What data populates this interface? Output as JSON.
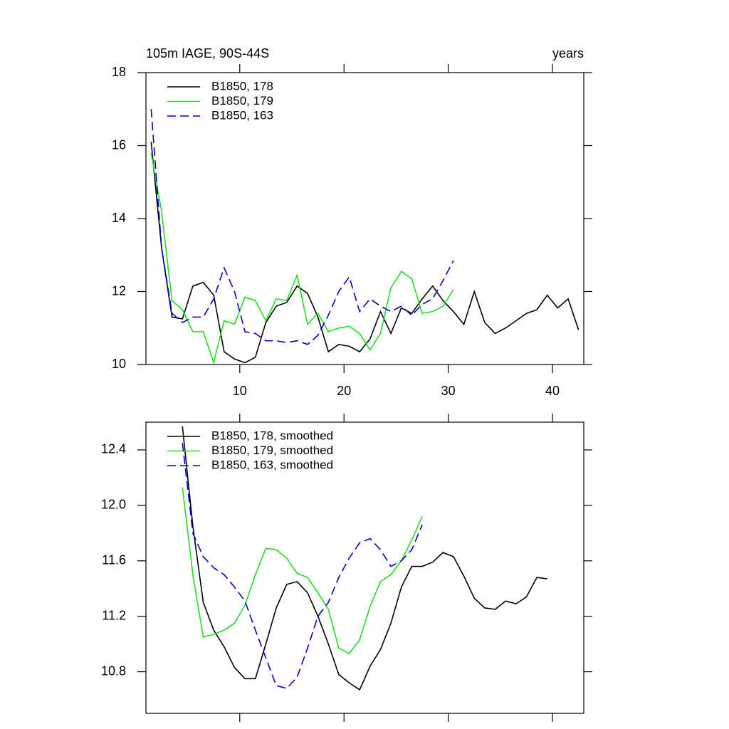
{
  "chart_data": [
    {
      "type": "line",
      "title": "105m IAGE, 90S-44S",
      "right_string": "years",
      "xlim": [
        1,
        43
      ],
      "xticks": [
        10,
        20,
        30,
        40
      ],
      "ylim": [
        10,
        18
      ],
      "yticks": [
        10,
        12,
        14,
        16,
        18
      ],
      "legend": "top-left",
      "series": [
        {
          "name": "B1850, 178",
          "color": "#000000",
          "dash": false,
          "x": [
            1.5,
            2.5,
            3.5,
            4.5,
            5.5,
            6.5,
            7.5,
            8.5,
            9.5,
            10.5,
            11.5,
            12.5,
            13.5,
            14.5,
            15.5,
            16.5,
            17.5,
            18.5,
            19.5,
            20.5,
            21.5,
            22.5,
            23.5,
            24.5,
            25.5,
            26.5,
            27.5,
            28.5,
            29.5,
            30.5,
            31.5,
            32.5,
            33.5,
            34.5,
            35.5,
            36.5,
            37.5,
            38.5,
            39.5,
            40.5,
            41.5,
            42.5
          ],
          "values": [
            16.1,
            13.2,
            11.3,
            11.25,
            12.15,
            12.25,
            11.9,
            10.35,
            10.15,
            10.05,
            10.2,
            11.15,
            11.6,
            11.7,
            12.15,
            11.95,
            11.3,
            10.35,
            10.55,
            10.5,
            10.35,
            10.7,
            11.45,
            10.85,
            11.55,
            11.4,
            11.8,
            12.15,
            11.75,
            11.45,
            11.1,
            12.0,
            11.15,
            10.85,
            11.0,
            11.2,
            11.4,
            11.5,
            11.9,
            11.55,
            11.8,
            10.95
          ]
        },
        {
          "name": "B1850, 179",
          "color": "#22dd22",
          "dash": false,
          "x": [
            1.5,
            2.5,
            3.5,
            4.5,
            5.5,
            6.5,
            7.5,
            8.5,
            9.5,
            10.5,
            11.5,
            12.5,
            13.5,
            14.5,
            15.5,
            16.5,
            17.5,
            18.5,
            19.5,
            20.5,
            21.5,
            22.5,
            23.5,
            24.5,
            25.5,
            26.5,
            27.5,
            28.5,
            29.5,
            30.5
          ],
          "values": [
            15.8,
            14.2,
            11.75,
            11.5,
            10.9,
            10.9,
            10.05,
            11.2,
            11.1,
            11.85,
            11.75,
            11.2,
            11.8,
            11.75,
            12.45,
            11.1,
            11.4,
            10.9,
            11.0,
            11.05,
            10.85,
            10.4,
            10.85,
            12.1,
            12.55,
            12.35,
            11.4,
            11.45,
            11.6,
            12.05
          ]
        },
        {
          "name": "B1850, 163",
          "color": "#0000cc",
          "dash": true,
          "x": [
            1.5,
            2.5,
            3.5,
            4.5,
            5.5,
            6.5,
            7.5,
            8.5,
            9.5,
            10.5,
            11.5,
            12.5,
            13.5,
            14.5,
            15.5,
            16.5,
            17.5,
            18.5,
            19.5,
            20.5,
            21.5,
            22.5,
            23.5,
            24.5,
            25.5,
            26.5,
            27.5,
            28.5,
            29.5,
            30.5
          ],
          "values": [
            17.0,
            13.2,
            11.4,
            11.15,
            11.3,
            11.3,
            11.8,
            12.65,
            12.0,
            10.9,
            10.85,
            10.65,
            10.65,
            10.6,
            10.65,
            10.55,
            10.8,
            11.35,
            12.0,
            12.4,
            11.45,
            11.8,
            11.6,
            11.45,
            11.6,
            11.35,
            11.65,
            11.8,
            12.3,
            12.85
          ]
        }
      ]
    },
    {
      "type": "line",
      "xlim": [
        1,
        43
      ],
      "xticks": [
        10,
        20,
        30,
        40
      ],
      "ylim": [
        10.5,
        12.6
      ],
      "yticks": [
        {
          "value": 10.8,
          "label": "10.8"
        },
        {
          "value": 11.2,
          "label": "11.2"
        },
        {
          "value": 11.6,
          "label": "11.6"
        },
        {
          "value": 12,
          "label": "12.0"
        },
        {
          "value": 12.4,
          "label": "12.4"
        }
      ],
      "legend": "top-left",
      "series": [
        {
          "name": "B1850, 178, smoothed",
          "color": "#000000",
          "dash": false,
          "x": [
            4.5,
            5.5,
            6.5,
            7.5,
            8.5,
            9.5,
            10.5,
            11.5,
            12.5,
            13.5,
            14.5,
            15.5,
            16.5,
            17.5,
            18.5,
            19.5,
            20.5,
            21.5,
            22.5,
            23.5,
            24.5,
            25.5,
            26.5,
            27.5,
            28.5,
            29.5,
            30.5,
            31.5,
            32.5,
            33.5,
            34.5,
            35.5,
            36.5,
            37.5,
            38.5,
            39.5
          ],
          "values": [
            12.57,
            11.85,
            11.3,
            11.1,
            10.98,
            10.83,
            10.75,
            10.75,
            11.0,
            11.26,
            11.43,
            11.45,
            11.37,
            11.2,
            11.0,
            10.78,
            10.72,
            10.67,
            10.84,
            10.96,
            11.15,
            11.41,
            11.56,
            11.56,
            11.59,
            11.66,
            11.63,
            11.49,
            11.33,
            11.26,
            11.25,
            11.31,
            11.29,
            11.34,
            11.48,
            11.47
          ]
        },
        {
          "name": "B1850, 179, smoothed",
          "color": "#22dd22",
          "dash": false,
          "x": [
            4.5,
            5.5,
            6.5,
            7.5,
            8.5,
            9.5,
            10.5,
            11.5,
            12.5,
            13.5,
            14.5,
            15.5,
            16.5,
            17.5,
            18.5,
            19.5,
            20.5,
            21.5,
            22.5,
            23.5,
            24.5,
            25.5,
            26.5,
            27.5
          ],
          "values": [
            12.13,
            11.5,
            11.05,
            11.07,
            11.1,
            11.15,
            11.28,
            11.5,
            11.69,
            11.68,
            11.62,
            11.51,
            11.48,
            11.37,
            11.25,
            10.97,
            10.93,
            11.03,
            11.27,
            11.45,
            11.5,
            11.6,
            11.75,
            11.92
          ]
        },
        {
          "name": "B1850, 163, smoothed",
          "color": "#0000cc",
          "dash": true,
          "x": [
            4.5,
            5.5,
            6.5,
            7.5,
            8.5,
            9.5,
            10.5,
            11.5,
            12.5,
            13.5,
            14.5,
            15.5,
            16.5,
            17.5,
            18.5,
            19.5,
            20.5,
            21.5,
            22.5,
            23.5,
            24.5,
            25.5,
            26.5,
            27.5
          ],
          "values": [
            12.45,
            11.8,
            11.63,
            11.55,
            11.5,
            11.41,
            11.31,
            11.1,
            10.9,
            10.7,
            10.68,
            10.76,
            10.97,
            11.2,
            11.3,
            11.48,
            11.62,
            11.73,
            11.76,
            11.68,
            11.56,
            11.6,
            11.68,
            11.86
          ]
        }
      ]
    }
  ]
}
